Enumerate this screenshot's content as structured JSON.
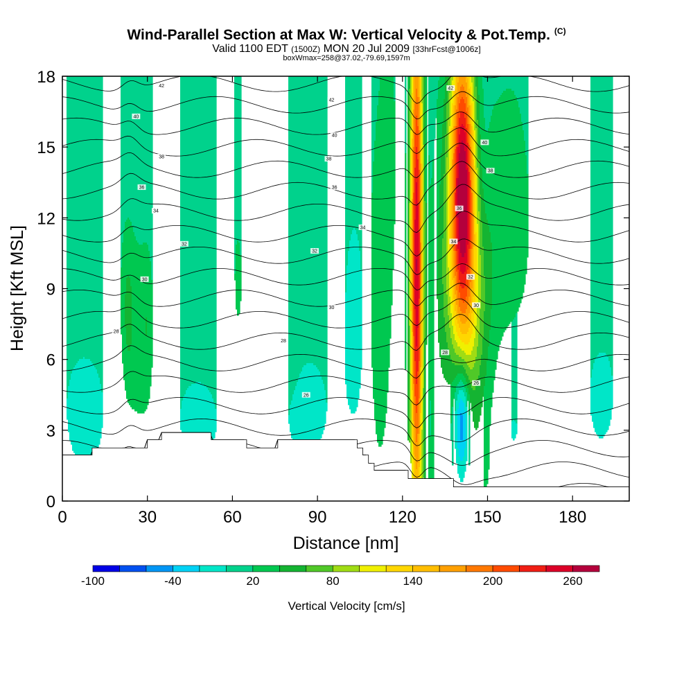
{
  "header": {
    "title": "Wind-Parallel Section at Max W: Vertical Velocity & Pot.Temp.",
    "copyright": "(C)",
    "valid_prefix": "Valid 1100 EDT",
    "valid_zulu": "(1500Z)",
    "valid_date": "MON 20 Jul 2009",
    "forecast": "[33hrFcst@1006z]",
    "box_info": "boxWmax=258@37.02,-79.69,1597m"
  },
  "chart_data": {
    "type": "heatmap",
    "xlabel": "Distance [nm]",
    "ylabel": "Height [Kft MSL]",
    "xlim": [
      0,
      200
    ],
    "ylim": [
      0,
      18
    ],
    "x_ticks": [
      0,
      30,
      60,
      90,
      120,
      150,
      180
    ],
    "y_ticks": [
      0,
      3,
      6,
      9,
      12,
      15,
      18
    ],
    "colorbar": {
      "label": "Vertical Velocity [cm/s]",
      "levels": [
        -100,
        -80,
        -60,
        -40,
        -20,
        0,
        20,
        40,
        60,
        80,
        100,
        120,
        140,
        160,
        180,
        200,
        220,
        240,
        260,
        280
      ],
      "colors": [
        "#0000e6",
        "#0050f0",
        "#0096f5",
        "#00d2f5",
        "#00e6c8",
        "#00d28c",
        "#00c850",
        "#14b432",
        "#50c828",
        "#a0dc14",
        "#f0f000",
        "#ffd700",
        "#ffbe00",
        "#ffa000",
        "#ff7800",
        "#ff4b00",
        "#f01e14",
        "#dc0028",
        "#b4003c"
      ],
      "tick_labels": [
        "-100",
        "-40",
        "20",
        "80",
        "140",
        "200",
        "260"
      ]
    },
    "background_w": 10,
    "features": [
      {
        "x": 125,
        "y": 10.0,
        "sx": 1.6,
        "sy": 8.5,
        "w": 250
      },
      {
        "x": 141,
        "y": 13.5,
        "sx": 3.0,
        "sy": 4.5,
        "w": 240
      },
      {
        "x": 144,
        "y": 8.5,
        "sx": 5.0,
        "sy": 5.0,
        "w": 80
      },
      {
        "x": 134,
        "y": 7.0,
        "sx": 3.0,
        "sy": 6.0,
        "w": 30
      },
      {
        "x": 158,
        "y": 11.0,
        "sx": 5.0,
        "sy": 5.0,
        "w": 22
      },
      {
        "x": 112,
        "y": 9.0,
        "sx": 2.5,
        "sy": 5.0,
        "w": 25
      },
      {
        "x": 115,
        "y": 15.0,
        "sx": 2.0,
        "sy": 4.0,
        "w": 18
      },
      {
        "x": 23,
        "y": 8.0,
        "sx": 1.5,
        "sy": 2.2,
        "w": 30
      },
      {
        "x": 27,
        "y": 7.0,
        "sx": 3.0,
        "sy": 3.0,
        "w": 20
      },
      {
        "x": 30,
        "y": 7.5,
        "sx": 1.2,
        "sy": 2.0,
        "w": 18
      },
      {
        "x": 141,
        "y": 3.5,
        "sx": 1.8,
        "sy": 1.8,
        "w": -90
      },
      {
        "x": 140,
        "y": 4.0,
        "sx": 5.0,
        "sy": 2.5,
        "w": -28
      },
      {
        "x": 158,
        "y": 4.0,
        "sx": 6.0,
        "sy": 3.0,
        "w": -18
      },
      {
        "x": 103,
        "y": 8.0,
        "sx": 2.5,
        "sy": 3.0,
        "w": -20
      },
      {
        "x": 148,
        "y": 14.0,
        "sx": 2.0,
        "sy": 3.0,
        "w": -20
      },
      {
        "x": 8,
        "y": 4.0,
        "sx": 8.0,
        "sy": 3.0,
        "w": -14
      },
      {
        "x": 48,
        "y": 3.5,
        "sx": 8.0,
        "sy": 2.0,
        "w": -14
      },
      {
        "x": 85,
        "y": 4.0,
        "sx": 10.0,
        "sy": 2.5,
        "w": -14
      },
      {
        "x": 190,
        "y": 5.0,
        "sx": 8.0,
        "sy": 4.0,
        "w": -12
      },
      {
        "x": 10,
        "y": 14.5,
        "sx": 8.0,
        "sy": 4.0,
        "w": 10
      },
      {
        "x": 60,
        "y": 13.0,
        "sx": 12.0,
        "sy": 4.0,
        "w": 6
      },
      {
        "x": 185,
        "y": 14.0,
        "sx": 10.0,
        "sy": 4.0,
        "w": 10
      },
      {
        "x": 140,
        "y": 1.5,
        "sx": 8.0,
        "sy": 1.0,
        "w": 8
      },
      {
        "x": 62,
        "y": 8.0,
        "sx": 2.0,
        "sy": 3.0,
        "w": 8
      },
      {
        "x": 80,
        "y": 8.0,
        "sx": 3.0,
        "sy": 3.0,
        "w": 6
      }
    ],
    "terrain": [
      [
        0,
        1.95
      ],
      [
        10.5,
        1.95
      ],
      [
        10.5,
        2.25
      ],
      [
        30,
        2.25
      ],
      [
        30,
        2.6
      ],
      [
        35,
        2.6
      ],
      [
        35,
        2.9
      ],
      [
        52.5,
        2.9
      ],
      [
        52.5,
        2.6
      ],
      [
        65,
        2.6
      ],
      [
        65,
        2.25
      ],
      [
        76,
        2.25
      ],
      [
        76,
        2.6
      ],
      [
        104,
        2.6
      ],
      [
        104,
        2.25
      ],
      [
        106,
        2.25
      ],
      [
        106,
        1.95
      ],
      [
        108,
        1.95
      ],
      [
        108,
        1.6
      ],
      [
        110,
        1.6
      ],
      [
        110,
        1.3
      ],
      [
        122,
        1.3
      ],
      [
        122,
        0.95
      ],
      [
        138,
        0.95
      ],
      [
        138,
        0.6
      ],
      [
        200,
        0.6
      ]
    ],
    "isentropes": {
      "levels": [
        24,
        25,
        26,
        27,
        28,
        29,
        30,
        31,
        32,
        33,
        34,
        35,
        36,
        37,
        38,
        39,
        40,
        41,
        42,
        43
      ],
      "labeled": [
        {
          "text": "42",
          "x": 35,
          "y": 17.6
        },
        {
          "text": "42",
          "x": 95,
          "y": 17.0
        },
        {
          "text": "42",
          "x": 137,
          "y": 17.5
        },
        {
          "text": "40",
          "x": 26,
          "y": 16.3
        },
        {
          "text": "40",
          "x": 96,
          "y": 15.5
        },
        {
          "text": "40",
          "x": 149,
          "y": 15.2
        },
        {
          "text": "38",
          "x": 35,
          "y": 14.6
        },
        {
          "text": "38",
          "x": 94,
          "y": 14.5
        },
        {
          "text": "38",
          "x": 151,
          "y": 14.0
        },
        {
          "text": "36",
          "x": 28,
          "y": 13.3
        },
        {
          "text": "36",
          "x": 96,
          "y": 13.3
        },
        {
          "text": "34",
          "x": 33,
          "y": 12.3
        },
        {
          "text": "34",
          "x": 106,
          "y": 11.6
        },
        {
          "text": "34",
          "x": 138,
          "y": 11.0
        },
        {
          "text": "36",
          "x": 140,
          "y": 12.4
        },
        {
          "text": "32",
          "x": 43,
          "y": 10.9
        },
        {
          "text": "32",
          "x": 89,
          "y": 10.6
        },
        {
          "text": "32",
          "x": 144,
          "y": 9.5
        },
        {
          "text": "30",
          "x": 29,
          "y": 9.4
        },
        {
          "text": "30",
          "x": 95,
          "y": 8.2
        },
        {
          "text": "30",
          "x": 146,
          "y": 8.3
        },
        {
          "text": "28",
          "x": 19,
          "y": 7.2
        },
        {
          "text": "28",
          "x": 78,
          "y": 6.8
        },
        {
          "text": "28",
          "x": 135,
          "y": 6.3
        },
        {
          "text": "26",
          "x": 86,
          "y": 4.5
        },
        {
          "text": "26",
          "x": 146,
          "y": 5.0
        }
      ]
    }
  }
}
